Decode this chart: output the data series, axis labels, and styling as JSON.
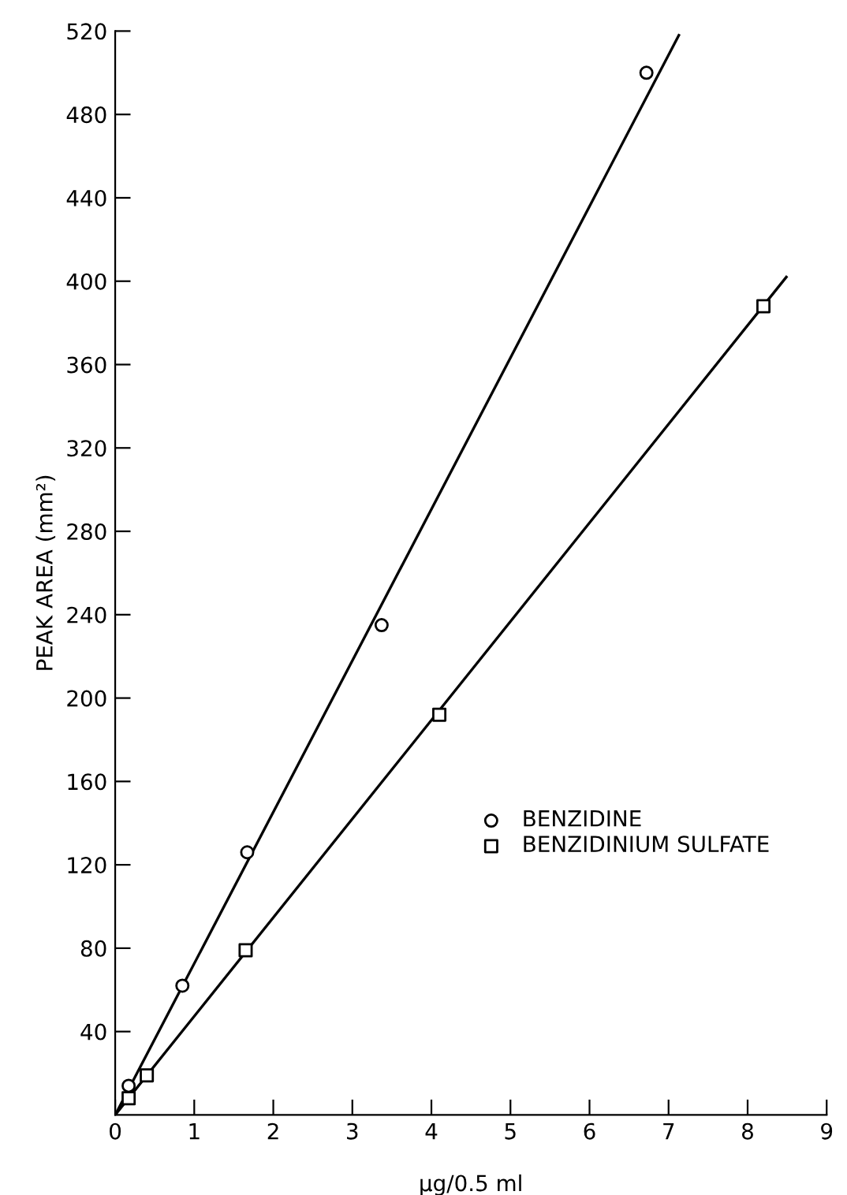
{
  "chart_data": {
    "type": "scatter",
    "xlabel": "μg/0.5 ml",
    "ylabel": "PEAK AREA (mm²)",
    "xlim": [
      0,
      9
    ],
    "ylim": [
      0,
      520
    ],
    "xticks": [
      0,
      1,
      2,
      3,
      4,
      5,
      6,
      7,
      8,
      9
    ],
    "yticks": [
      40,
      80,
      120,
      160,
      200,
      240,
      280,
      320,
      360,
      400,
      440,
      480,
      520
    ],
    "grid": false,
    "legend": "right",
    "series": [
      {
        "name": "BENZIDINE",
        "color": "#000000",
        "marker": "circle",
        "x": [
          0.17,
          0.85,
          1.67,
          3.37,
          6.72
        ],
        "values": [
          14,
          62,
          126,
          235,
          500
        ]
      },
      {
        "name": "BENZIDINIUM SULFATE",
        "color": "#000000",
        "marker": "square",
        "x": [
          0.17,
          0.4,
          1.65,
          4.1,
          8.2
        ],
        "values": [
          8,
          19,
          79,
          192,
          388
        ]
      },
      {
        "type": "line",
        "color": "#000000",
        "marker": "none",
        "x": [
          0,
          7.13
        ],
        "values": [
          0,
          518
        ]
      },
      {
        "type": "line",
        "color": "#000000",
        "marker": "none",
        "x": [
          0,
          8.49
        ],
        "values": [
          0,
          402
        ]
      }
    ]
  }
}
